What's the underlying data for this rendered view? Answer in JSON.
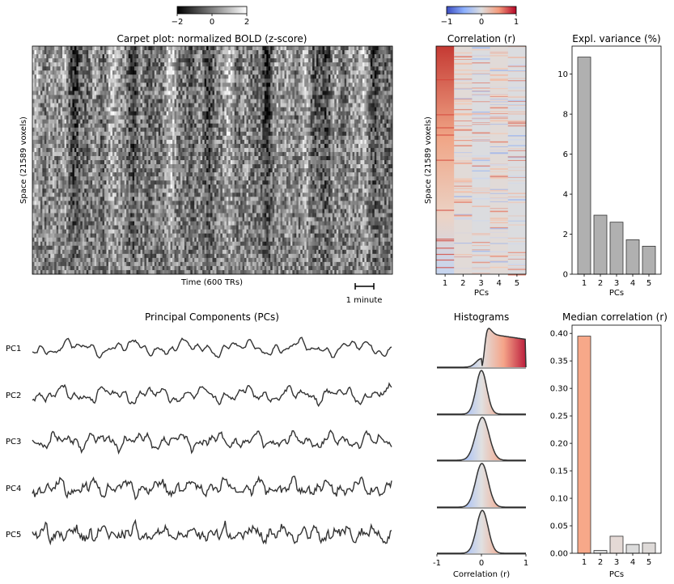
{
  "chart_data": [
    {
      "type": "heatmap",
      "title": "Carpet plot: normalized BOLD (z-score)",
      "xlabel": "Time (600 TRs)",
      "ylabel": "Space (21589 voxels)",
      "scale_bar_label": "1 minute",
      "colorbar": {
        "ticks": [
          "−2",
          "0",
          "2"
        ],
        "range": [
          -2,
          2
        ],
        "colors": [
          "#000000",
          "#ffffff"
        ]
      }
    },
    {
      "type": "heatmap",
      "title": "Correlation (r)",
      "xlabel": "PCs",
      "ylabel": "Space (21589 voxels)",
      "categories": [
        "1",
        "2",
        "3",
        "4",
        "5"
      ],
      "colorbar": {
        "ticks": [
          "−1",
          "0",
          "1"
        ],
        "range": [
          -1,
          1
        ],
        "colors": [
          "#3b4cc0",
          "#dddddd",
          "#b40426"
        ]
      }
    },
    {
      "type": "bar",
      "title": "Expl. variance (%)",
      "xlabel": "PCs",
      "ylabel": "",
      "categories": [
        "1",
        "2",
        "3",
        "4",
        "5"
      ],
      "values": [
        10.85,
        2.95,
        2.6,
        1.72,
        1.4
      ],
      "ylim": [
        0,
        11.4
      ],
      "yticks": [
        0,
        2,
        4,
        6,
        8,
        10
      ],
      "color": "#b0b0b0"
    },
    {
      "type": "line",
      "title": "Principal Components (PCs)",
      "series": [
        {
          "name": "PC1"
        },
        {
          "name": "PC2"
        },
        {
          "name": "PC3"
        },
        {
          "name": "PC4"
        },
        {
          "name": "PC5"
        }
      ],
      "color": "#333333"
    },
    {
      "type": "area",
      "title": "Histograms",
      "xlabel": "Correlation (r)",
      "xticks": [
        "-1",
        "0",
        "1"
      ],
      "xlim": [
        -1,
        1
      ],
      "series": [
        {
          "name": "PC1",
          "peak": 0.08,
          "width": 0.26,
          "shoulder": 0.55
        },
        {
          "name": "PC2",
          "peak": 0.0,
          "width": 0.12
        },
        {
          "name": "PC3",
          "peak": 0.02,
          "width": 0.15
        },
        {
          "name": "PC4",
          "peak": 0.01,
          "width": 0.14
        },
        {
          "name": "PC5",
          "peak": 0.02,
          "width": 0.13
        }
      ]
    },
    {
      "type": "bar",
      "title": "Median correlation (r)",
      "xlabel": "PCs",
      "ylabel": "",
      "categories": [
        "1",
        "2",
        "3",
        "4",
        "5"
      ],
      "values": [
        0.395,
        0.005,
        0.031,
        0.016,
        0.019
      ],
      "ylim": [
        0,
        0.415
      ],
      "yticks": [
        "0.00",
        "0.05",
        "0.10",
        "0.15",
        "0.20",
        "0.25",
        "0.30",
        "0.35",
        "0.40"
      ],
      "colors": [
        "#f7a889",
        "#dcdcdc",
        "#e4d9d5",
        "#dcdcdc",
        "#dedad8"
      ]
    }
  ]
}
